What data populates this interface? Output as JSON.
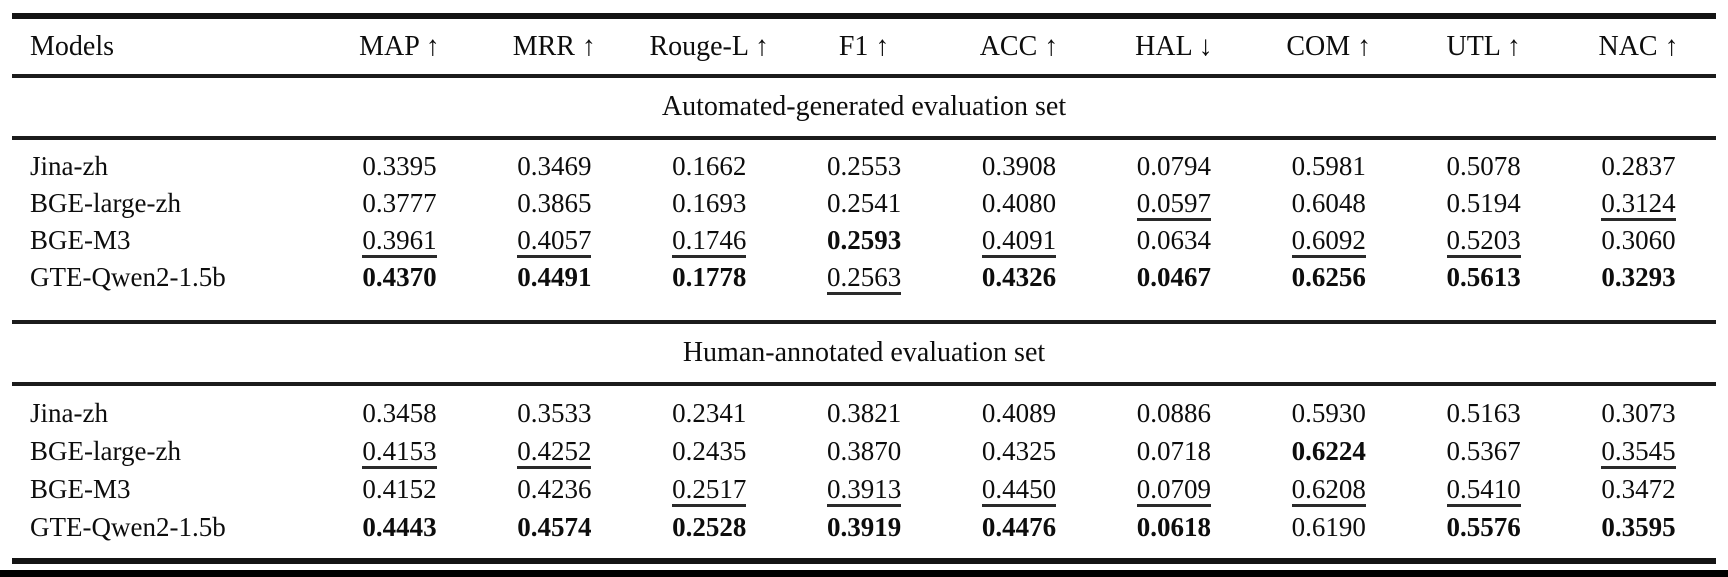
{
  "chart_data": {
    "type": "table",
    "columns": [
      "Models",
      "MAP ↑",
      "MRR ↑",
      "Rouge-L ↑",
      "F1 ↑",
      "ACC ↑",
      "HAL ↓",
      "COM ↑",
      "UTL ↑",
      "NAC ↑"
    ],
    "emphasis_legend": {
      "best": "bold",
      "second": "underline"
    },
    "colors": {
      "text": "#0d0d0d",
      "rule": "#1c1c1c",
      "background": "#ffffff",
      "bottom_bar": "#000000"
    },
    "sections": [
      {
        "label": "Automated-generated evaluation set",
        "rows": [
          {
            "model": "Jina-zh",
            "values": [
              "0.3395",
              "0.3469",
              "0.1662",
              "0.2553",
              "0.3908",
              "0.0794",
              "0.5981",
              "0.5078",
              "0.2837"
            ],
            "emphasis": [
              "",
              "",
              "",
              "",
              "",
              "",
              "",
              "",
              ""
            ]
          },
          {
            "model": "BGE-large-zh",
            "values": [
              "0.3777",
              "0.3865",
              "0.1693",
              "0.2541",
              "0.4080",
              "0.0597",
              "0.6048",
              "0.5194",
              "0.3124"
            ],
            "emphasis": [
              "",
              "",
              "",
              "",
              "",
              "second",
              "",
              "",
              "second"
            ]
          },
          {
            "model": "BGE-M3",
            "values": [
              "0.3961",
              "0.4057",
              "0.1746",
              "0.2593",
              "0.4091",
              "0.0634",
              "0.6092",
              "0.5203",
              "0.3060"
            ],
            "emphasis": [
              "second",
              "second",
              "second",
              "best",
              "second",
              "",
              "second",
              "second",
              ""
            ]
          },
          {
            "model": "GTE-Qwen2-1.5b",
            "values": [
              "0.4370",
              "0.4491",
              "0.1778",
              "0.2563",
              "0.4326",
              "0.0467",
              "0.6256",
              "0.5613",
              "0.3293"
            ],
            "emphasis": [
              "best",
              "best",
              "best",
              "second",
              "best",
              "best",
              "best",
              "best",
              "best"
            ]
          }
        ]
      },
      {
        "label": "Human-annotated evaluation set",
        "rows": [
          {
            "model": "Jina-zh",
            "values": [
              "0.3458",
              "0.3533",
              "0.2341",
              "0.3821",
              "0.4089",
              "0.0886",
              "0.5930",
              "0.5163",
              "0.3073"
            ],
            "emphasis": [
              "",
              "",
              "",
              "",
              "",
              "",
              "",
              "",
              ""
            ]
          },
          {
            "model": "BGE-large-zh",
            "values": [
              "0.4153",
              "0.4252",
              "0.2435",
              "0.3870",
              "0.4325",
              "0.0718",
              "0.6224",
              "0.5367",
              "0.3545"
            ],
            "emphasis": [
              "second",
              "second",
              "",
              "",
              "",
              "",
              "best",
              "",
              "second"
            ]
          },
          {
            "model": "BGE-M3",
            "values": [
              "0.4152",
              "0.4236",
              "0.2517",
              "0.3913",
              "0.4450",
              "0.0709",
              "0.6208",
              "0.5410",
              "0.3472"
            ],
            "emphasis": [
              "",
              "",
              "second",
              "second",
              "second",
              "second",
              "second",
              "second",
              ""
            ]
          },
          {
            "model": "GTE-Qwen2-1.5b",
            "values": [
              "0.4443",
              "0.4574",
              "0.2528",
              "0.3919",
              "0.4476",
              "0.0618",
              "0.6190",
              "0.5576",
              "0.3595"
            ],
            "emphasis": [
              "best",
              "best",
              "best",
              "best",
              "best",
              "best",
              "",
              "best",
              "best"
            ]
          }
        ]
      }
    ]
  }
}
